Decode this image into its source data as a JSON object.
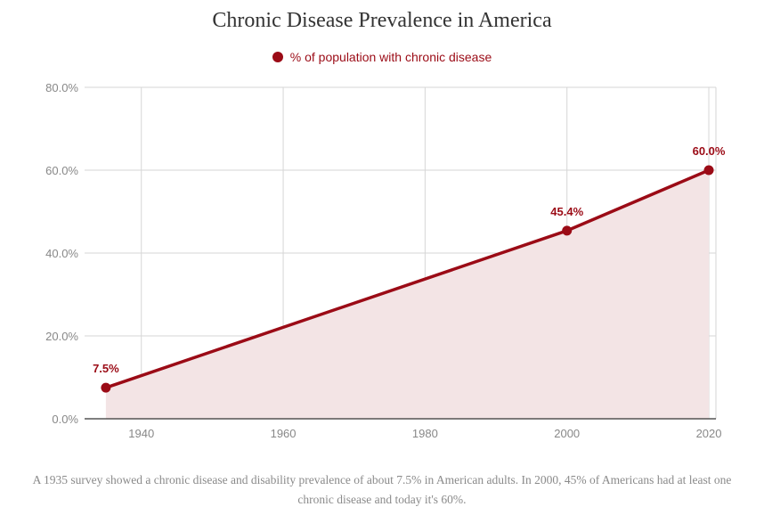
{
  "colors": {
    "series": "#9b0b16",
    "area": "#f3e4e5",
    "grid": "#d6d6d6",
    "tick_text": "#888888"
  },
  "chart_data": {
    "type": "area",
    "title": "Chronic Disease Prevalence in America",
    "xlabel": "",
    "ylabel": "",
    "xlim": [
      1932,
      2021
    ],
    "ylim": [
      0,
      80
    ],
    "x_ticks": [
      1940,
      1960,
      1980,
      2000,
      2020
    ],
    "y_ticks": [
      0,
      20,
      40,
      60,
      80
    ],
    "y_tick_labels": [
      "0.0%",
      "20.0%",
      "40.0%",
      "60.0%",
      "80.0%"
    ],
    "grid": true,
    "legend_position": "top-center",
    "series": [
      {
        "name": "% of population with chronic disease",
        "x": [
          1935,
          2000,
          2020
        ],
        "values": [
          7.5,
          45.4,
          60.0
        ],
        "data_labels": [
          "7.5%",
          "45.4%",
          "60.0%"
        ]
      }
    ]
  },
  "caption": "A 1935 survey showed a chronic disease and disability prevalence of about 7.5% in American adults. In 2000, 45% of Americans had at least one chronic disease and today it's 60%."
}
